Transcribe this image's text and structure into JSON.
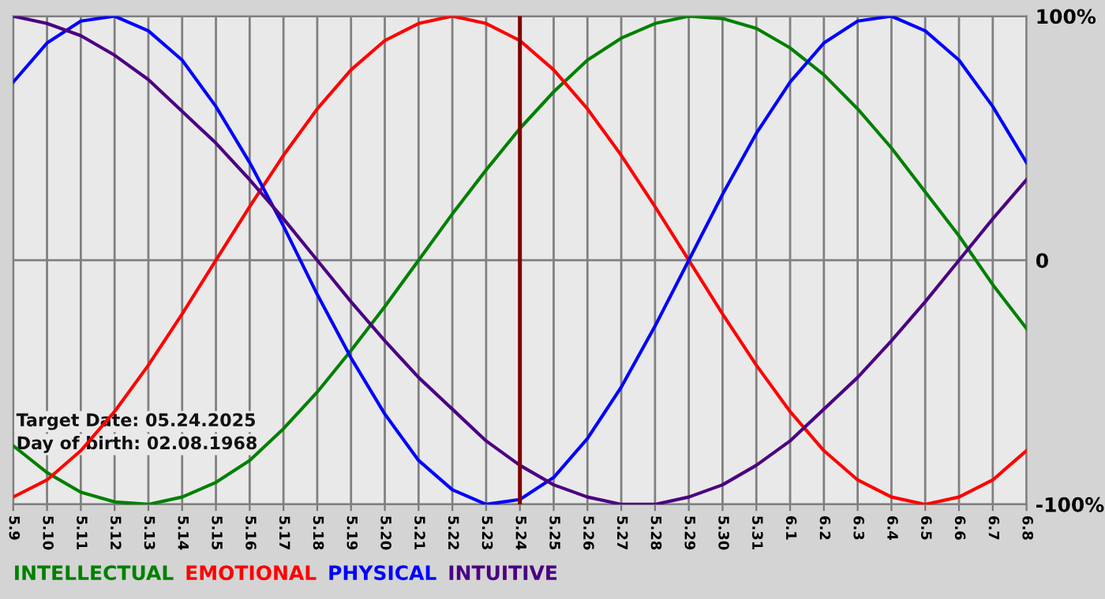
{
  "chart_data": {
    "type": "line",
    "categories": [
      "5.9",
      "5.10",
      "5.11",
      "5.12",
      "5.13",
      "5.14",
      "5.15",
      "5.16",
      "5.17",
      "5.18",
      "5.19",
      "5.20",
      "5.21",
      "5.22",
      "5.23",
      "5.24",
      "5.25",
      "5.26",
      "5.27",
      "5.28",
      "5.29",
      "5.30",
      "5.31",
      "6.1",
      "6.2",
      "6.3",
      "6.4",
      "6.5",
      "6.6",
      "6.7",
      "6.8"
    ],
    "series": [
      {
        "name": "INTELLECTUAL",
        "color": "#008000",
        "values": [
          -76,
          -87,
          -95,
          -99,
          -100,
          -97,
          -91,
          -82,
          -69,
          -54,
          -37,
          -19,
          0,
          19,
          37,
          54,
          69,
          82,
          91,
          97,
          100,
          99,
          95,
          87,
          76,
          62,
          46,
          28,
          10,
          -10,
          -28
        ]
      },
      {
        "name": "EMOTIONAL",
        "color": "#ff0000",
        "values": [
          -97,
          -90,
          -78,
          -62,
          -43,
          -22,
          0,
          22,
          43,
          62,
          78,
          90,
          97,
          100,
          97,
          90,
          78,
          62,
          43,
          22,
          0,
          -22,
          -43,
          -62,
          -78,
          -90,
          -97,
          -100,
          -97,
          -90,
          -78
        ]
      },
      {
        "name": "PHYSICAL",
        "color": "#0000ff",
        "values": [
          73,
          89,
          98,
          100,
          94,
          82,
          63,
          40,
          14,
          -14,
          -40,
          -63,
          -82,
          -94,
          -100,
          -98,
          -89,
          -73,
          -52,
          -27,
          0,
          27,
          52,
          73,
          89,
          98,
          100,
          94,
          82,
          63,
          40
        ]
      },
      {
        "name": "INTUITIVE",
        "color": "#4b0082",
        "values": [
          100,
          97,
          92,
          84,
          74,
          61,
          48,
          33,
          17,
          0,
          -17,
          -33,
          -48,
          -61,
          -74,
          -84,
          -92,
          -97,
          -100,
          -100,
          -97,
          -92,
          -84,
          -74,
          -61,
          -48,
          -33,
          -17,
          0,
          17,
          33
        ]
      }
    ],
    "ylim": [
      -100,
      100
    ],
    "yticks": [
      {
        "value": -100,
        "label": "-100%"
      },
      0,
      {
        "value": 100,
        "label": "100%"
      }
    ],
    "grid": true,
    "legend": "bottom",
    "marker": "none",
    "line_style": "solid",
    "ref_lines": [
      {
        "axis": "x",
        "value": "5.24",
        "color": "#800000"
      }
    ],
    "annotations": [
      "Target Date: 05.24.2025",
      "Day of birth: 02.08.1968"
    ]
  }
}
